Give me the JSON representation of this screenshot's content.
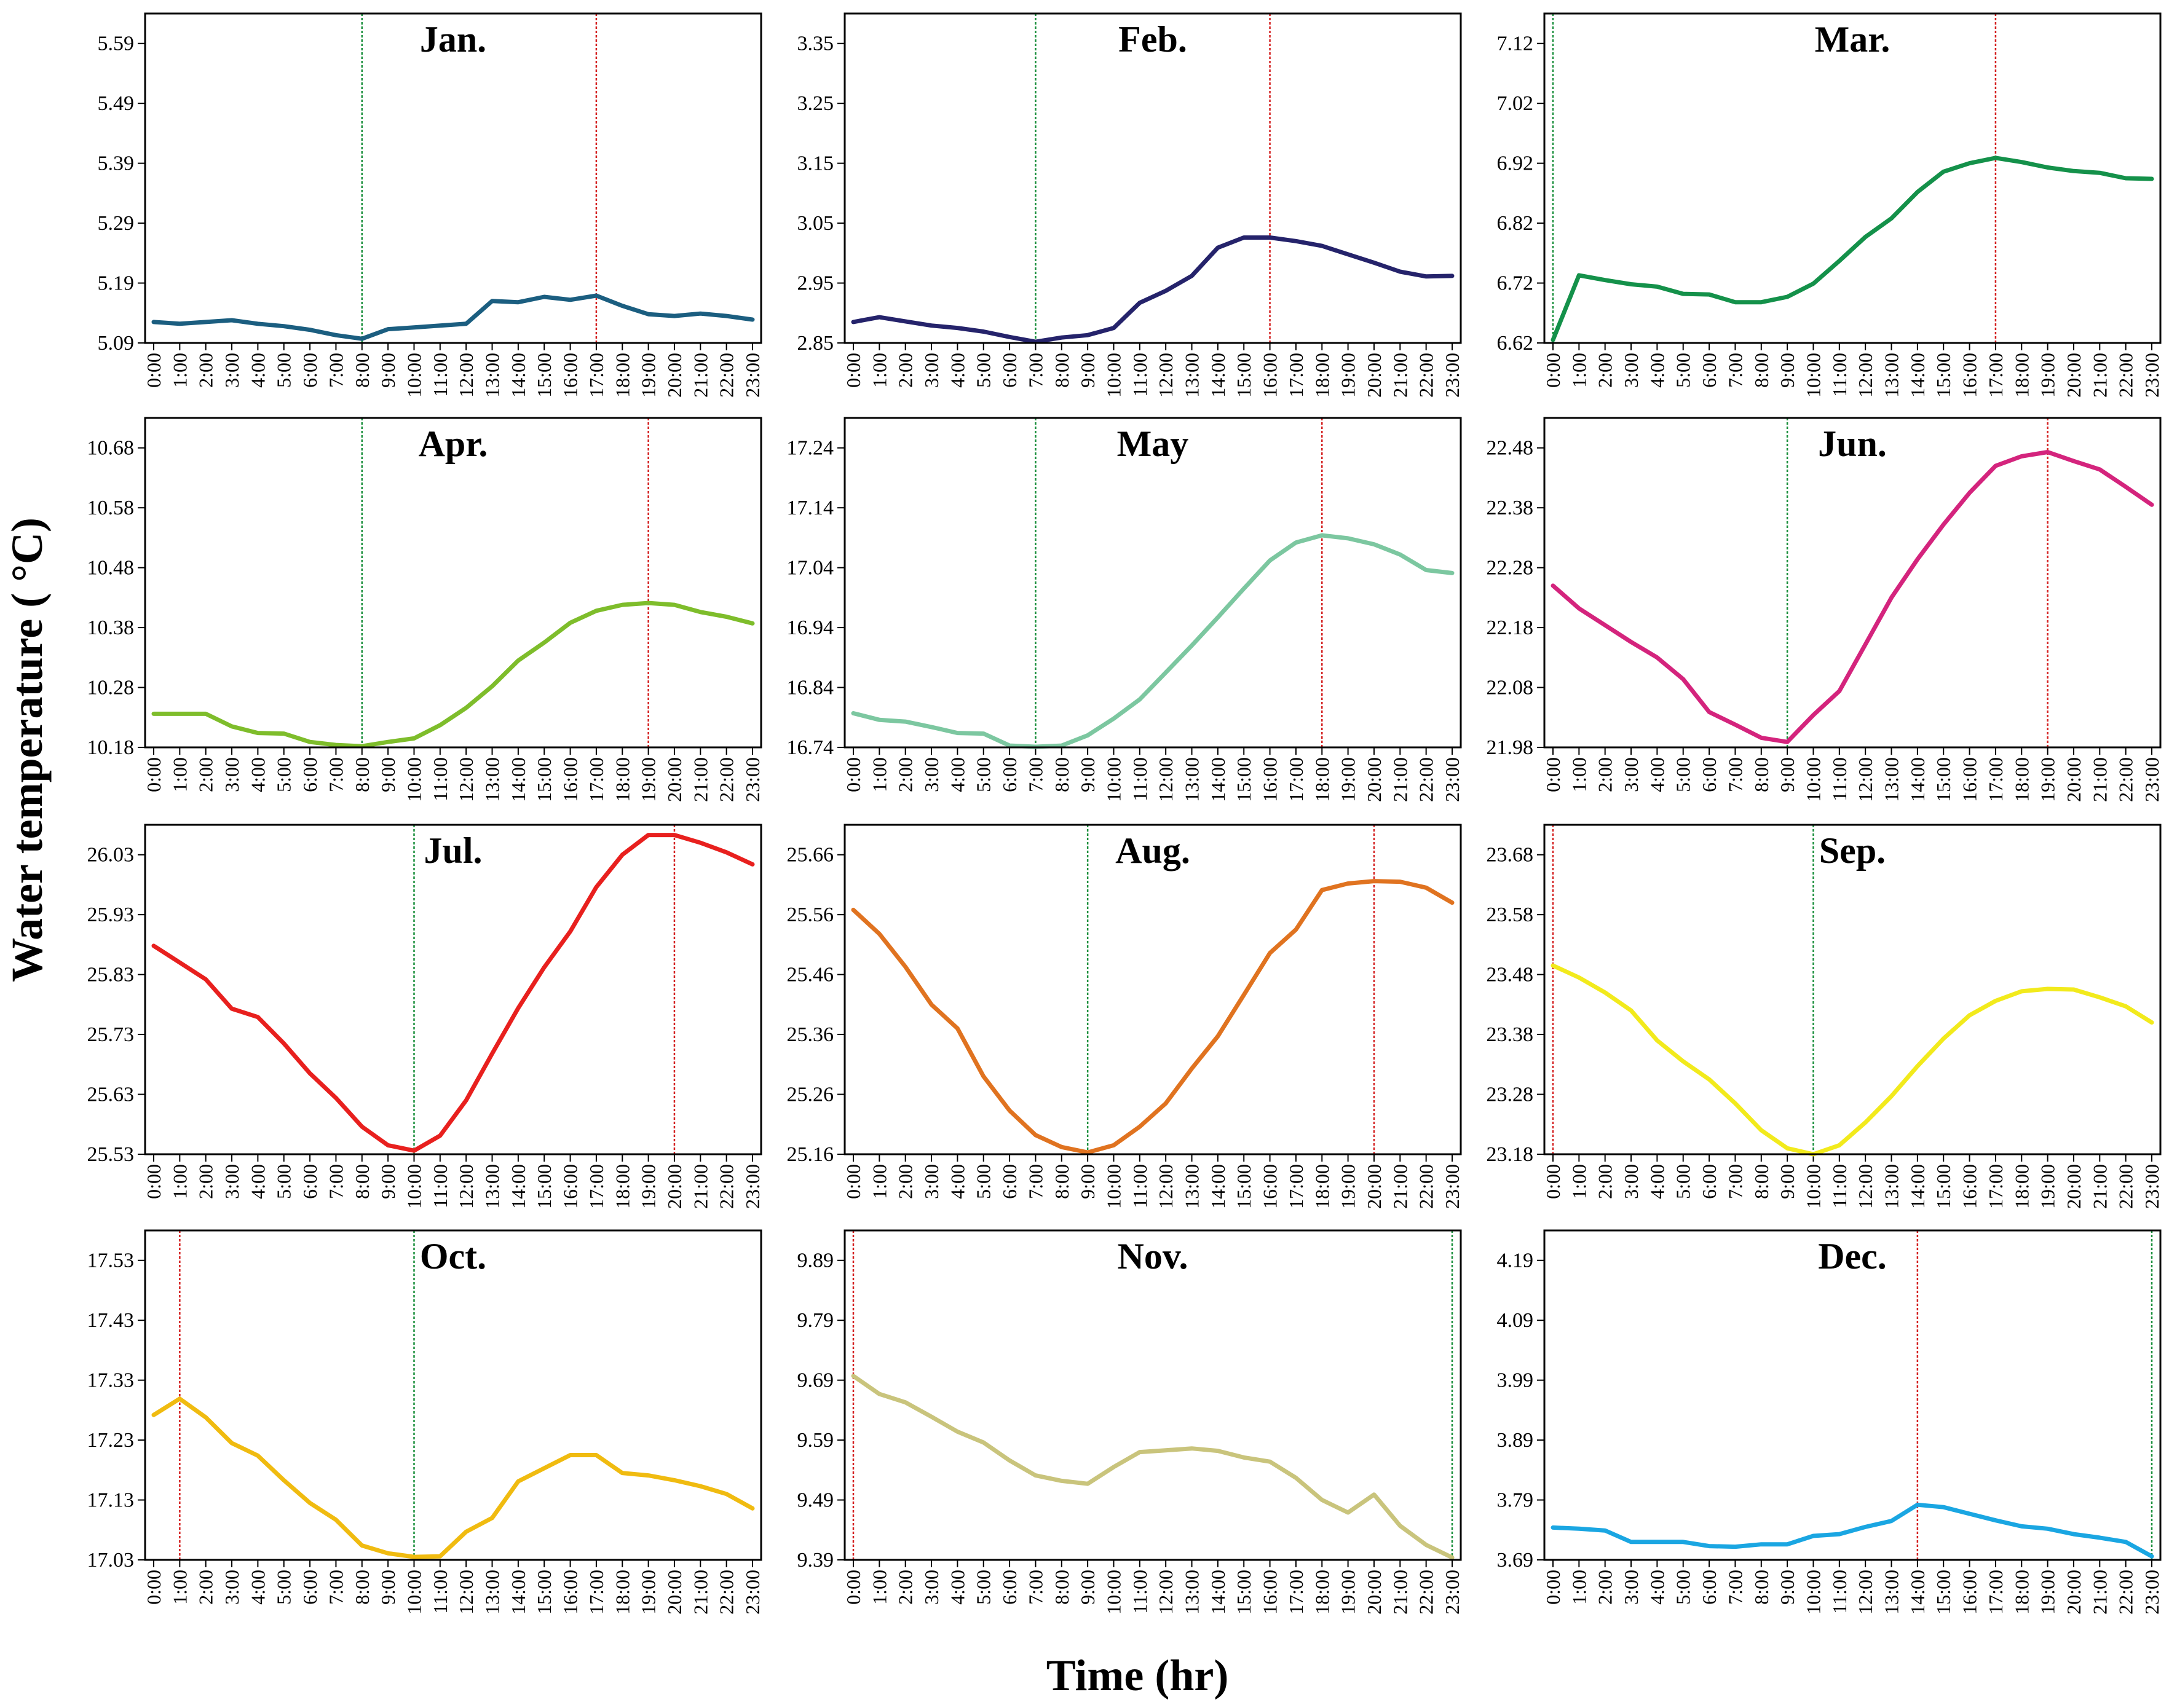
{
  "figure": {
    "ylabel": "Water temperature ( °C)",
    "xlabel": "Time (hr)",
    "hours": [
      "0:00",
      "1:00",
      "2:00",
      "3:00",
      "4:00",
      "5:00",
      "6:00",
      "7:00",
      "8:00",
      "9:00",
      "10:00",
      "11:00",
      "12:00",
      "13:00",
      "14:00",
      "15:00",
      "16:00",
      "17:00",
      "18:00",
      "19:00",
      "20:00",
      "21:00",
      "22:00",
      "23:00"
    ],
    "marker_colors": {
      "min": "#1a8f3c",
      "max": "#d42020"
    }
  },
  "chart_data": [
    {
      "type": "line",
      "title": "Jan.",
      "color": "#1b5e80",
      "yticks": [
        "5.09",
        "5.19",
        "5.29",
        "5.39",
        "5.49",
        "5.59"
      ],
      "ylim": [
        5.09,
        5.64
      ],
      "values": [
        5.125,
        5.122,
        5.125,
        5.128,
        5.122,
        5.118,
        5.112,
        5.103,
        5.097,
        5.113,
        5.116,
        5.119,
        5.122,
        5.16,
        5.158,
        5.167,
        5.162,
        5.169,
        5.152,
        5.138,
        5.135,
        5.139,
        5.135,
        5.129
      ],
      "min_hour": 8,
      "max_hour": 17
    },
    {
      "type": "line",
      "title": "Feb.",
      "color": "#25236b",
      "yticks": [
        "2.85",
        "2.95",
        "3.05",
        "3.15",
        "3.25",
        "3.35"
      ],
      "ylim": [
        2.85,
        3.4
      ],
      "values": [
        2.885,
        2.893,
        2.886,
        2.879,
        2.875,
        2.869,
        2.86,
        2.852,
        2.859,
        2.863,
        2.875,
        2.917,
        2.937,
        2.962,
        3.009,
        3.026,
        3.026,
        3.02,
        3.012,
        2.998,
        2.984,
        2.969,
        2.961,
        2.962
      ],
      "min_hour": 7,
      "max_hour": 16
    },
    {
      "type": "line",
      "title": "Mar.",
      "color": "#14914a",
      "yticks": [
        "6.62",
        "6.72",
        "6.82",
        "6.92",
        "7.02",
        "7.12"
      ],
      "ylim": [
        6.62,
        7.17
      ],
      "values": [
        6.625,
        6.733,
        6.725,
        6.718,
        6.714,
        6.702,
        6.701,
        6.688,
        6.688,
        6.697,
        6.719,
        6.757,
        6.797,
        6.828,
        6.872,
        6.906,
        6.92,
        6.929,
        6.922,
        6.913,
        6.907,
        6.904,
        6.895,
        6.894
      ],
      "min_hour": 0,
      "max_hour": 17
    },
    {
      "type": "line",
      "title": "Apr.",
      "color": "#7ebd2b",
      "yticks": [
        "10.18",
        "10.28",
        "10.38",
        "10.48",
        "10.58",
        "10.68"
      ],
      "ylim": [
        10.18,
        10.73
      ],
      "values": [
        10.236,
        10.236,
        10.236,
        10.215,
        10.204,
        10.203,
        10.189,
        10.184,
        10.182,
        10.189,
        10.195,
        10.217,
        10.246,
        10.282,
        10.325,
        10.355,
        10.388,
        10.408,
        10.418,
        10.421,
        10.418,
        10.406,
        10.398,
        10.387
      ],
      "min_hour": 8,
      "max_hour": 19
    },
    {
      "type": "line",
      "title": "May",
      "color": "#7cc7a0",
      "yticks": [
        "16.74",
        "16.84",
        "16.94",
        "17.04",
        "17.14",
        "17.24"
      ],
      "ylim": [
        16.74,
        17.29
      ],
      "values": [
        16.797,
        16.786,
        16.783,
        16.774,
        16.764,
        16.763,
        16.743,
        16.741,
        16.743,
        16.76,
        16.788,
        16.82,
        16.865,
        16.91,
        16.957,
        17.005,
        17.052,
        17.082,
        17.094,
        17.089,
        17.079,
        17.062,
        17.036,
        17.031
      ],
      "min_hour": 7,
      "max_hour": 18
    },
    {
      "type": "line",
      "title": "Jun.",
      "color": "#d4247d",
      "yticks": [
        "21.98",
        "22.08",
        "22.18",
        "22.28",
        "22.38",
        "22.48"
      ],
      "ylim": [
        21.98,
        22.53
      ],
      "values": [
        22.25,
        22.212,
        22.184,
        22.156,
        22.13,
        22.094,
        22.039,
        22.018,
        21.996,
        21.989,
        22.034,
        22.074,
        22.152,
        22.23,
        22.294,
        22.352,
        22.405,
        22.45,
        22.466,
        22.473,
        22.458,
        22.444,
        22.415,
        22.385
      ],
      "min_hour": 9,
      "max_hour": 19
    },
    {
      "type": "line",
      "title": "Jul.",
      "color": "#e8201e",
      "yticks": [
        "25.53",
        "25.63",
        "25.73",
        "25.83",
        "25.93",
        "26.03"
      ],
      "ylim": [
        25.53,
        26.08
      ],
      "values": [
        25.878,
        25.85,
        25.822,
        25.773,
        25.759,
        25.715,
        25.665,
        25.624,
        25.576,
        25.545,
        25.536,
        25.561,
        25.62,
        25.698,
        25.774,
        25.842,
        25.902,
        25.976,
        26.03,
        26.063,
        26.063,
        26.05,
        26.034,
        26.014
      ],
      "min_hour": 10,
      "max_hour": 20
    },
    {
      "type": "line",
      "title": "Aug.",
      "color": "#e07320",
      "yticks": [
        "25.16",
        "25.26",
        "25.36",
        "25.46",
        "25.56",
        "25.66"
      ],
      "ylim": [
        25.16,
        25.71
      ],
      "values": [
        25.568,
        25.528,
        25.473,
        25.41,
        25.37,
        25.29,
        25.233,
        25.192,
        25.172,
        25.163,
        25.175,
        25.206,
        25.245,
        25.303,
        25.357,
        25.426,
        25.496,
        25.535,
        25.601,
        25.612,
        25.616,
        25.615,
        25.605,
        25.58
      ],
      "min_hour": 9,
      "max_hour": 20
    },
    {
      "type": "line",
      "title": "Sep.",
      "color": "#f2ea1c",
      "yticks": [
        "23.18",
        "23.28",
        "23.38",
        "23.48",
        "23.58",
        "23.68"
      ],
      "ylim": [
        23.18,
        23.73
      ],
      "values": [
        23.495,
        23.475,
        23.45,
        23.42,
        23.37,
        23.335,
        23.305,
        23.265,
        23.22,
        23.19,
        23.18,
        23.195,
        23.233,
        23.277,
        23.327,
        23.373,
        23.412,
        23.436,
        23.452,
        23.456,
        23.455,
        23.442,
        23.427,
        23.4
      ],
      "min_hour": 10,
      "max_hour": 0
    },
    {
      "type": "line",
      "title": "Oct.",
      "color": "#f0bb10",
      "yticks": [
        "17.03",
        "17.13",
        "17.23",
        "17.33",
        "17.43",
        "17.53"
      ],
      "ylim": [
        17.03,
        17.58
      ],
      "values": [
        17.272,
        17.299,
        17.268,
        17.225,
        17.204,
        17.163,
        17.125,
        17.097,
        17.054,
        17.041,
        17.035,
        17.036,
        17.077,
        17.1,
        17.161,
        17.183,
        17.205,
        17.205,
        17.175,
        17.171,
        17.163,
        17.153,
        17.14,
        17.116
      ],
      "min_hour": 10,
      "max_hour": 1
    },
    {
      "type": "line",
      "title": "Nov.",
      "color": "#c9c47c",
      "yticks": [
        "9.39",
        "9.49",
        "9.59",
        "9.69",
        "9.79",
        "9.89"
      ],
      "ylim": [
        9.39,
        9.94
      ],
      "values": [
        9.697,
        9.667,
        9.653,
        9.629,
        9.604,
        9.586,
        9.556,
        9.531,
        9.522,
        9.517,
        9.545,
        9.57,
        9.573,
        9.576,
        9.572,
        9.561,
        9.554,
        9.527,
        9.49,
        9.469,
        9.499,
        9.447,
        9.415,
        9.394
      ],
      "min_hour": 23,
      "max_hour": 0
    },
    {
      "type": "line",
      "title": "Dec.",
      "color": "#1aa6e2",
      "yticks": [
        "3.69",
        "3.79",
        "3.89",
        "3.99",
        "4.09",
        "4.19"
      ],
      "ylim": [
        3.69,
        4.24
      ],
      "values": [
        3.744,
        3.742,
        3.739,
        3.72,
        3.72,
        3.72,
        3.713,
        3.712,
        3.716,
        3.716,
        3.73,
        3.733,
        3.745,
        3.755,
        3.782,
        3.778,
        3.767,
        3.756,
        3.746,
        3.742,
        3.733,
        3.727,
        3.72,
        3.696
      ],
      "min_hour": 23,
      "max_hour": 14
    }
  ]
}
